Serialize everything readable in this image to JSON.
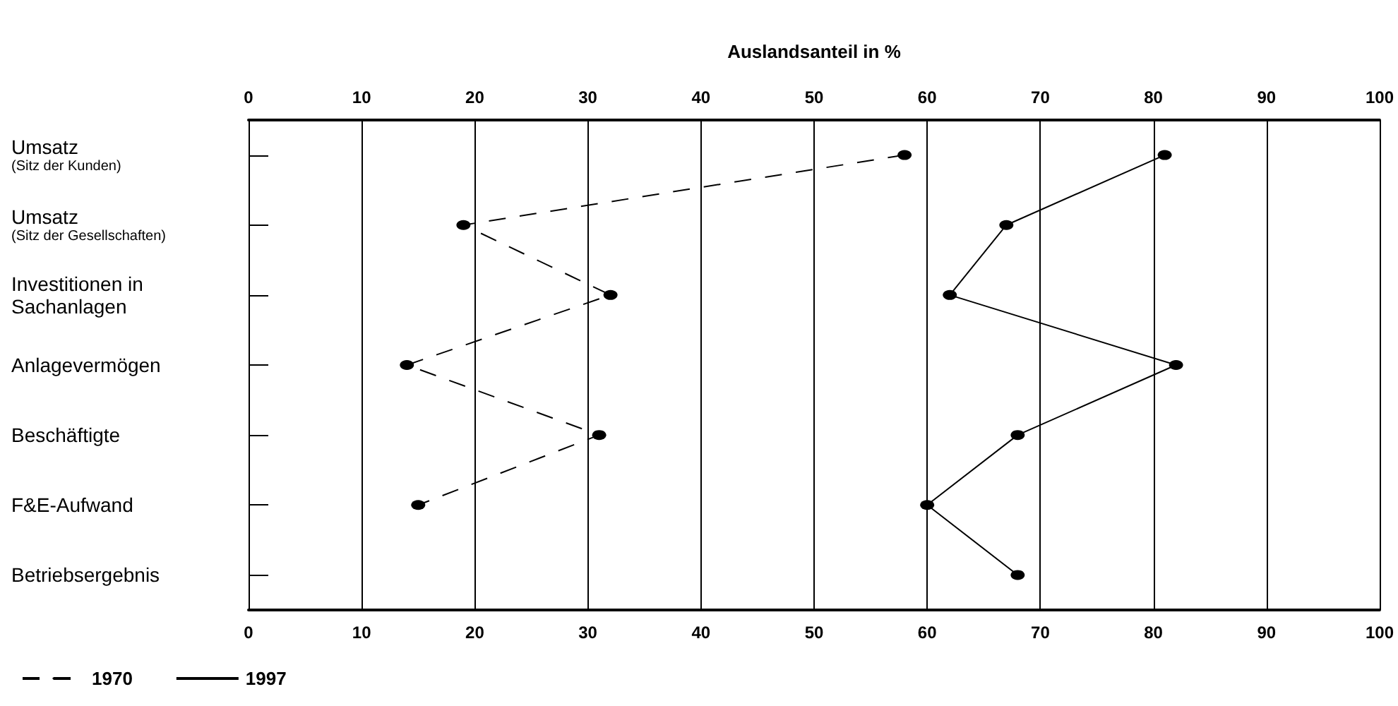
{
  "chart_data": {
    "type": "line",
    "orientation": "horizontal",
    "xlabel": "Auslandsanteil in %",
    "categories": [
      "Umsatz\n(Sitz der Kunden)",
      "Umsatz\n(Sitz der Gesellschaften)",
      "Investitionen in\nSachanlagen",
      "Anlagevermögen",
      "Beschäftigte",
      "F&E-Aufwand",
      "Betriebsergebnis"
    ],
    "series": [
      {
        "name": "1970",
        "color": "#000000",
        "line_style": "dashed",
        "values": [
          58,
          19,
          32,
          14,
          31,
          15,
          null
        ]
      },
      {
        "name": "1997",
        "color": "#000000",
        "line_style": "solid",
        "values": [
          81,
          67,
          62,
          82,
          68,
          60,
          68
        ]
      }
    ],
    "xlim": [
      0,
      100
    ],
    "xticks": [
      0,
      10,
      20,
      30,
      40,
      50,
      60,
      70,
      80,
      90,
      100
    ],
    "x2lim": [
      0,
      100
    ],
    "x2ticks": [
      0,
      10,
      20,
      30,
      40,
      50,
      60,
      70,
      80,
      90,
      100
    ],
    "grid": "x",
    "marker": "circle",
    "legend": "bottom left"
  }
}
